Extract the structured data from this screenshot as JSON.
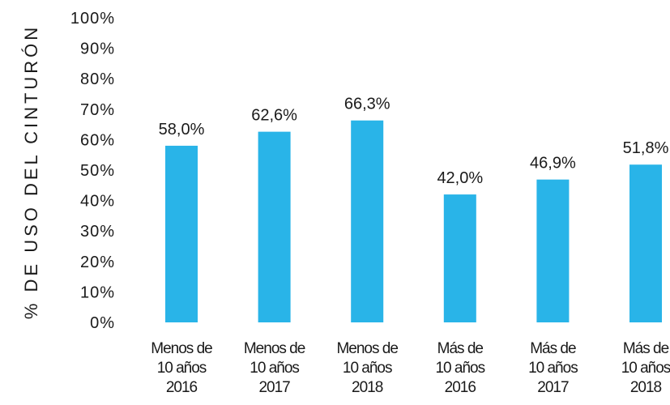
{
  "chart_data": {
    "type": "bar",
    "title": "",
    "xlabel": "",
    "ylabel": "% DE USO DEL CINTURÓN",
    "ylim": [
      0,
      100
    ],
    "yticks": [
      "0%",
      "10%",
      "20%",
      "30%",
      "40%",
      "50%",
      "60%",
      "70%",
      "80%",
      "90%",
      "100%"
    ],
    "grid": false,
    "categories": [
      [
        "Menos de",
        "10 años",
        "2016"
      ],
      [
        "Menos de",
        "10 años",
        "2017"
      ],
      [
        "Menos de",
        "10 años",
        "2018"
      ],
      [
        "Más de",
        "10 años",
        "2016"
      ],
      [
        "Más de",
        "10 años",
        "2017"
      ],
      [
        "Más de",
        "10 años",
        "2018"
      ]
    ],
    "values": [
      58.0,
      62.6,
      66.3,
      42.0,
      46.9,
      51.8
    ],
    "data_labels": [
      "58,0%",
      "62,6%",
      "66,3%",
      "42,0%",
      "46,9%",
      "51,8%"
    ],
    "colors": {
      "bar": "#29b4e8",
      "text": "#1a1a1a"
    }
  }
}
